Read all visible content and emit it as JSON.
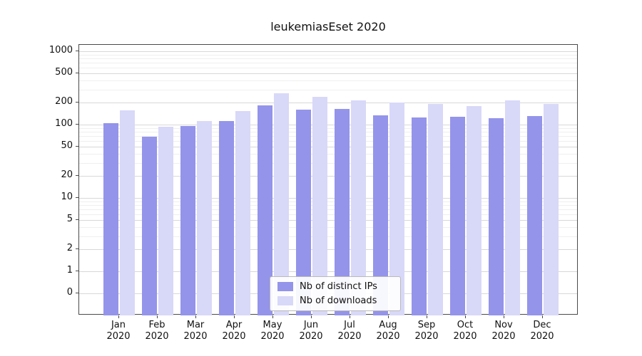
{
  "title": "leukemiasEset 2020",
  "chart_data": {
    "type": "bar",
    "title": "leukemiasEset 2020",
    "categories": [
      "Jan 2020",
      "Feb 2020",
      "Mar 2020",
      "Apr 2020",
      "May 2020",
      "Jun 2020",
      "Jul 2020",
      "Aug 2020",
      "Sep 2020",
      "Oct 2020",
      "Nov 2020",
      "Dec 2020"
    ],
    "series": [
      {
        "name": "Nb of distinct IPs",
        "color": "#9494EB",
        "values": [
          105,
          68,
          95,
          113,
          183,
          160,
          163,
          133,
          124,
          128,
          122,
          130
        ]
      },
      {
        "name": "Nb of downloads",
        "color": "#D8D8F8",
        "values": [
          155,
          93,
          112,
          152,
          265,
          238,
          212,
          198,
          192,
          178,
          215,
          192
        ]
      }
    ],
    "xlabel": "",
    "ylabel": "",
    "y_scale": "symlog",
    "y_ticks": [
      0,
      1,
      2,
      5,
      10,
      20,
      50,
      100,
      200,
      500,
      1000
    ],
    "y_minor_gridlines": [
      3,
      4,
      6,
      7,
      8,
      9,
      30,
      40,
      60,
      70,
      80,
      90,
      300,
      400,
      600,
      700,
      800,
      900
    ],
    "ylim": [
      0,
      1220
    ],
    "grid": true,
    "legend_position": "lower center"
  }
}
